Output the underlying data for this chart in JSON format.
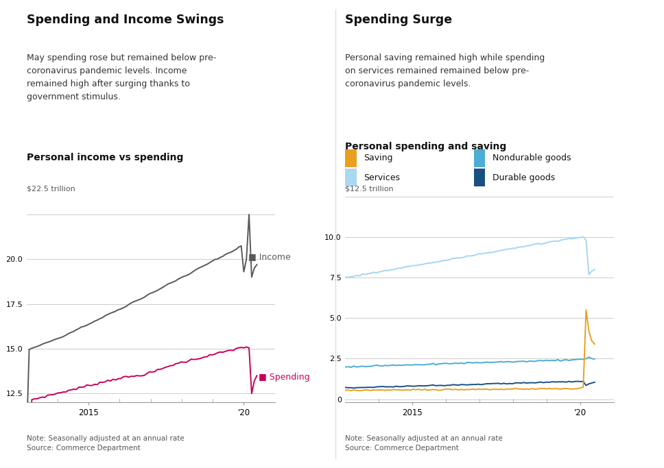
{
  "left_title": "Spending and Income Swings",
  "left_subtitle": "May spending rose but remained below pre-\ncoronavirus pandemic levels. Income\nremained high after surging thanks to\ngovernment stimulus.",
  "left_chart_title": "Personal income vs spending",
  "left_ylabel": "$22.5 trillion",
  "left_ylim": [
    12.0,
    23.5
  ],
  "left_yticks": [
    12.5,
    15.0,
    17.5,
    20.0
  ],
  "right_title": "Spending Surge",
  "right_subtitle": "Personal saving remained high while spending\non services remained remained below pre-\ncoronavirus pandemic levels.",
  "right_chart_title": "Personal spending and saving",
  "right_ylabel": "$12.5 trillion",
  "right_ylim": [
    -0.2,
    12.5
  ],
  "right_yticks": [
    0,
    2.5,
    5.0,
    7.5,
    10.0
  ],
  "note": "Note: Seasonally adjusted at an annual rate\nSource: Commerce Department",
  "income_color": "#595959",
  "spending_color": "#C8005A",
  "saving_color": "#E8A020",
  "services_color": "#AAD8F0",
  "nondurable_color": "#4BADD4",
  "durable_color": "#1A4F82",
  "bg_color": "#FFFFFF",
  "grid_color": "#CCCCCC",
  "divider_color": "#DDDDDD"
}
